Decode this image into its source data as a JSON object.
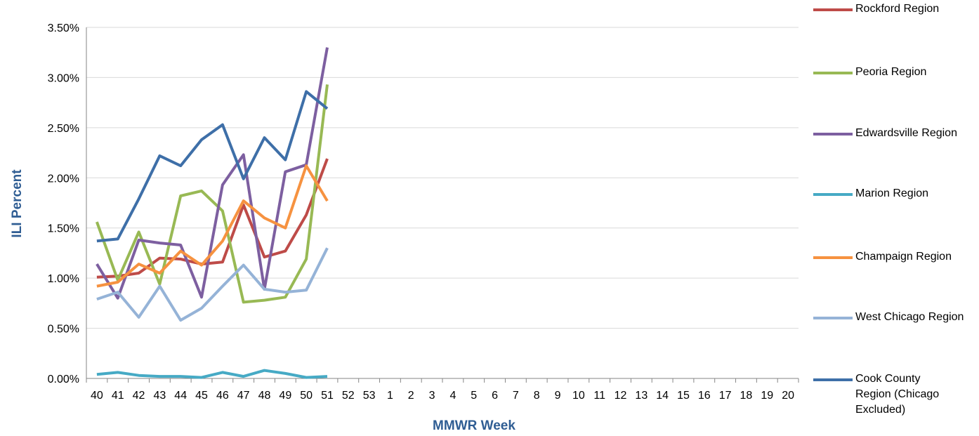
{
  "chart_data": {
    "type": "line",
    "x_label": "MMWR Week",
    "y_label": "ILI Percent",
    "categories": [
      "40",
      "41",
      "42",
      "43",
      "44",
      "45",
      "46",
      "47",
      "48",
      "49",
      "50",
      "51",
      "52",
      "53",
      "1",
      "2",
      "3",
      "4",
      "5",
      "6",
      "7",
      "8",
      "9",
      "10",
      "11",
      "12",
      "13",
      "14",
      "15",
      "16",
      "17",
      "18",
      "19",
      "20"
    ],
    "ylim": [
      0,
      3.5
    ],
    "yticks": [
      {
        "value": 0,
        "label": "0.00%"
      },
      {
        "value": 0.5,
        "label": "0.50%"
      },
      {
        "value": 1,
        "label": "1.00%"
      },
      {
        "value": 1.5,
        "label": "1.50%"
      },
      {
        "value": 2,
        "label": "2.00%"
      },
      {
        "value": 2.5,
        "label": "2.50%"
      },
      {
        "value": 3,
        "label": "3.00%"
      },
      {
        "value": 3.5,
        "label": "3.50%"
      }
    ],
    "grid": true,
    "legend": "right",
    "series": [
      {
        "name": "Rockford Region",
        "color": "#be4b48",
        "values": [
          1.01,
          1.02,
          1.05,
          1.2,
          1.19,
          1.14,
          1.16,
          1.73,
          1.21,
          1.27,
          1.63,
          2.19,
          null,
          null,
          null,
          null,
          null,
          null,
          null,
          null,
          null,
          null,
          null,
          null,
          null,
          null,
          null,
          null,
          null,
          null,
          null,
          null,
          null,
          null
        ]
      },
      {
        "name": "Peoria Region",
        "color": "#98b954",
        "values": [
          1.56,
          0.98,
          1.46,
          0.94,
          1.82,
          1.87,
          1.67,
          0.76,
          0.78,
          0.81,
          1.19,
          2.93,
          null,
          null,
          null,
          null,
          null,
          null,
          null,
          null,
          null,
          null,
          null,
          null,
          null,
          null,
          null,
          null,
          null,
          null,
          null,
          null,
          null,
          null
        ]
      },
      {
        "name": "Edwardsville Region",
        "color": "#7d5fa0",
        "values": [
          1.14,
          0.8,
          1.38,
          1.35,
          1.33,
          0.81,
          1.93,
          2.23,
          0.89,
          2.06,
          2.13,
          3.3,
          null,
          null,
          null,
          null,
          null,
          null,
          null,
          null,
          null,
          null,
          null,
          null,
          null,
          null,
          null,
          null,
          null,
          null,
          null,
          null,
          null,
          null
        ]
      },
      {
        "name": "Marion Region",
        "color": "#46aac5",
        "values": [
          0.04,
          0.06,
          0.03,
          0.02,
          0.02,
          0.01,
          0.06,
          0.02,
          0.08,
          0.05,
          0.01,
          0.02,
          null,
          null,
          null,
          null,
          null,
          null,
          null,
          null,
          null,
          null,
          null,
          null,
          null,
          null,
          null,
          null,
          null,
          null,
          null,
          null,
          null,
          null
        ]
      },
      {
        "name": "Champaign Region",
        "color": "#f69240",
        "values": [
          0.92,
          0.96,
          1.14,
          1.05,
          1.27,
          1.13,
          1.37,
          1.77,
          1.6,
          1.5,
          2.12,
          1.77,
          null,
          null,
          null,
          null,
          null,
          null,
          null,
          null,
          null,
          null,
          null,
          null,
          null,
          null,
          null,
          null,
          null,
          null,
          null,
          null,
          null,
          null
        ]
      },
      {
        "name": "West Chicago Region",
        "color": "#95b3d7",
        "values": [
          0.79,
          0.86,
          0.61,
          0.92,
          0.58,
          0.7,
          0.92,
          1.13,
          0.89,
          0.86,
          0.88,
          1.3,
          null,
          null,
          null,
          null,
          null,
          null,
          null,
          null,
          null,
          null,
          null,
          null,
          null,
          null,
          null,
          null,
          null,
          null,
          null,
          null,
          null,
          null
        ]
      },
      {
        "name": "Cook County Region (Chicago Excluded)",
        "color": "#3e6fa8",
        "values": [
          1.37,
          1.39,
          1.79,
          2.22,
          2.12,
          2.38,
          2.53,
          1.99,
          2.4,
          2.18,
          2.86,
          2.69,
          null,
          null,
          null,
          null,
          null,
          null,
          null,
          null,
          null,
          null,
          null,
          null,
          null,
          null,
          null,
          null,
          null,
          null,
          null,
          null,
          null,
          null
        ]
      }
    ]
  }
}
